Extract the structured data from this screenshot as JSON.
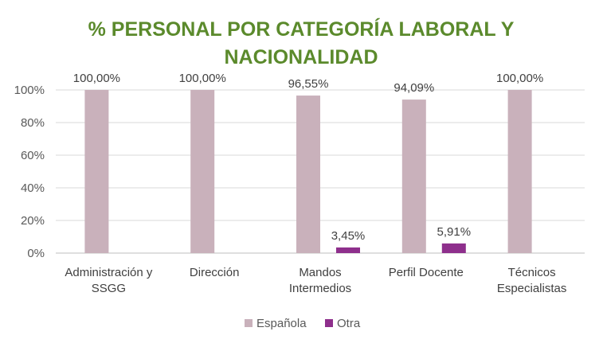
{
  "chart_data": {
    "type": "bar",
    "title_lines": [
      "% PERSONAL POR CATEGORÍA LABORAL Y",
      "NACIONALIDAD"
    ],
    "categories": [
      [
        "Administración y",
        "SSGG"
      ],
      [
        "Dirección"
      ],
      [
        "Mandos",
        "Intermedios"
      ],
      [
        "Perfil Docente"
      ],
      [
        "Técnicos",
        "Especialistas"
      ]
    ],
    "series": [
      {
        "name": "Española",
        "color": "#c9b1bb",
        "values": [
          100,
          100,
          96.55,
          94.09,
          100
        ],
        "labels": [
          "100,00%",
          "100,00%",
          "96,55%",
          "94,09%",
          "100,00%"
        ]
      },
      {
        "name": "Otra",
        "color": "#8e2f8c",
        "values": [
          0,
          0,
          3.45,
          5.91,
          0
        ],
        "labels": [
          "",
          "",
          "3,45%",
          "5,91%",
          ""
        ]
      }
    ],
    "yticks": [
      "0%",
      "20%",
      "40%",
      "60%",
      "80%",
      "100%"
    ],
    "ylim": [
      0,
      100
    ],
    "grid": true,
    "legend": "bottom",
    "title_color": "#5b8a2c"
  }
}
